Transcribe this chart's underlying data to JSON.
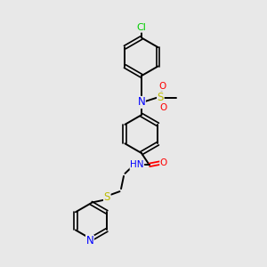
{
  "background_color": "#e8e8e8",
  "bond_color": "#000000",
  "atom_colors": {
    "C": "#000000",
    "N": "#0000ff",
    "O": "#ff0000",
    "S": "#bbbb00",
    "Cl": "#00cc00",
    "H": "#5588aa"
  },
  "figsize": [
    3.0,
    3.0
  ],
  "dpi": 100
}
